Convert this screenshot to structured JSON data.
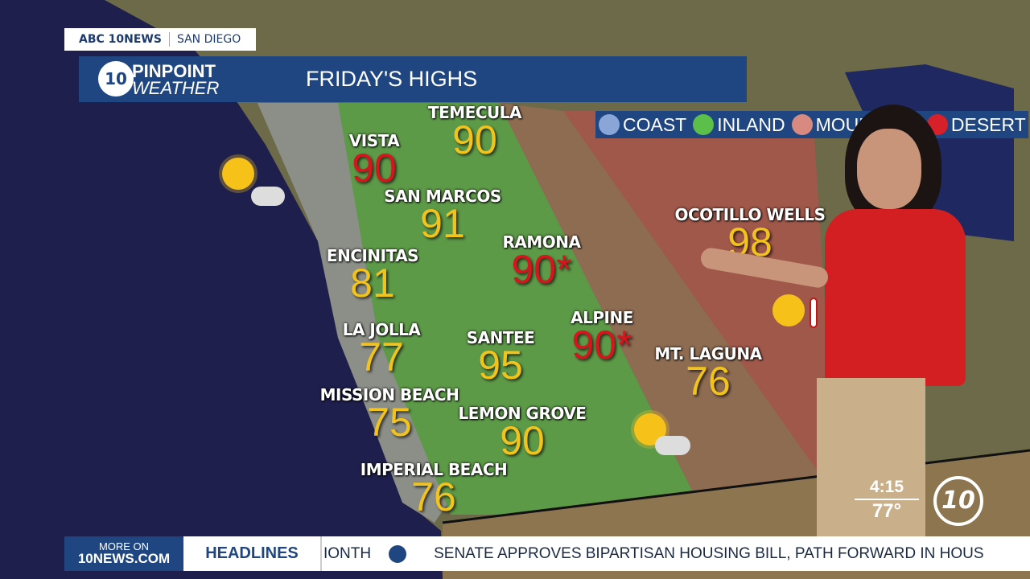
{
  "network_bug": {
    "station": "ABC 10NEWS",
    "market": "SAN DIEGO"
  },
  "brand": {
    "line1": "PINPOINT",
    "line2": "WEATHER",
    "logo_text": "abc 10"
  },
  "title": "FRIDAY'S HIGHS",
  "legend": [
    {
      "label": "COAST",
      "color": "#8aa6d8"
    },
    {
      "label": "INLAND",
      "color": "#5cbf4a"
    },
    {
      "label": "MOUN",
      "color": "#d88a80"
    },
    {
      "label": "DESERT",
      "color": "#d8202a"
    }
  ],
  "cities": [
    {
      "name": "TEMECULA",
      "high": "90",
      "zone": "inland",
      "color": "#f2c31c"
    },
    {
      "name": "VISTA",
      "high": "90",
      "zone": "coast",
      "color": "#d8141e"
    },
    {
      "name": "SAN MARCOS",
      "high": "91",
      "zone": "inland",
      "color": "#f2c31c"
    },
    {
      "name": "ENCINITAS",
      "high": "81",
      "zone": "coast",
      "color": "#f2c31c"
    },
    {
      "name": "RAMONA",
      "high": "90*",
      "zone": "inland",
      "color": "#d8141e"
    },
    {
      "name": "LA JOLLA",
      "high": "77",
      "zone": "coast",
      "color": "#f2c31c"
    },
    {
      "name": "SANTEE",
      "high": "95",
      "zone": "inland",
      "color": "#f2c31c"
    },
    {
      "name": "ALPINE",
      "high": "90*",
      "zone": "mountain",
      "color": "#d8141e"
    },
    {
      "name": "MT. LAGUNA",
      "high": "76",
      "zone": "mountain",
      "color": "#f2c31c"
    },
    {
      "name": "MISSION BEACH",
      "high": "75",
      "zone": "coast",
      "color": "#f2c31c"
    },
    {
      "name": "LEMON GROVE",
      "high": "90",
      "zone": "inland",
      "color": "#f2c31c"
    },
    {
      "name": "IMPERIAL BEACH",
      "high": "76",
      "zone": "coast",
      "color": "#f2c31c"
    },
    {
      "name": "OCOTILLO WELLS",
      "high": "98",
      "zone": "desert",
      "color": "#f2c31c"
    }
  ],
  "icons": [
    "partly-sunny-icon",
    "partly-sunny-icon",
    "hot-sun-thermometer-icon"
  ],
  "time_temp": {
    "time": "4:15",
    "temp": "77°"
  },
  "ticker": {
    "more_line1": "MORE ON",
    "more_line2": "10NEWS.COM",
    "section": "HEADLINES",
    "prev_fragment": "IONTH",
    "headline": "SENATE APPROVES BIPARTISAN HOUSING BILL, PATH FORWARD IN HOUS"
  }
}
